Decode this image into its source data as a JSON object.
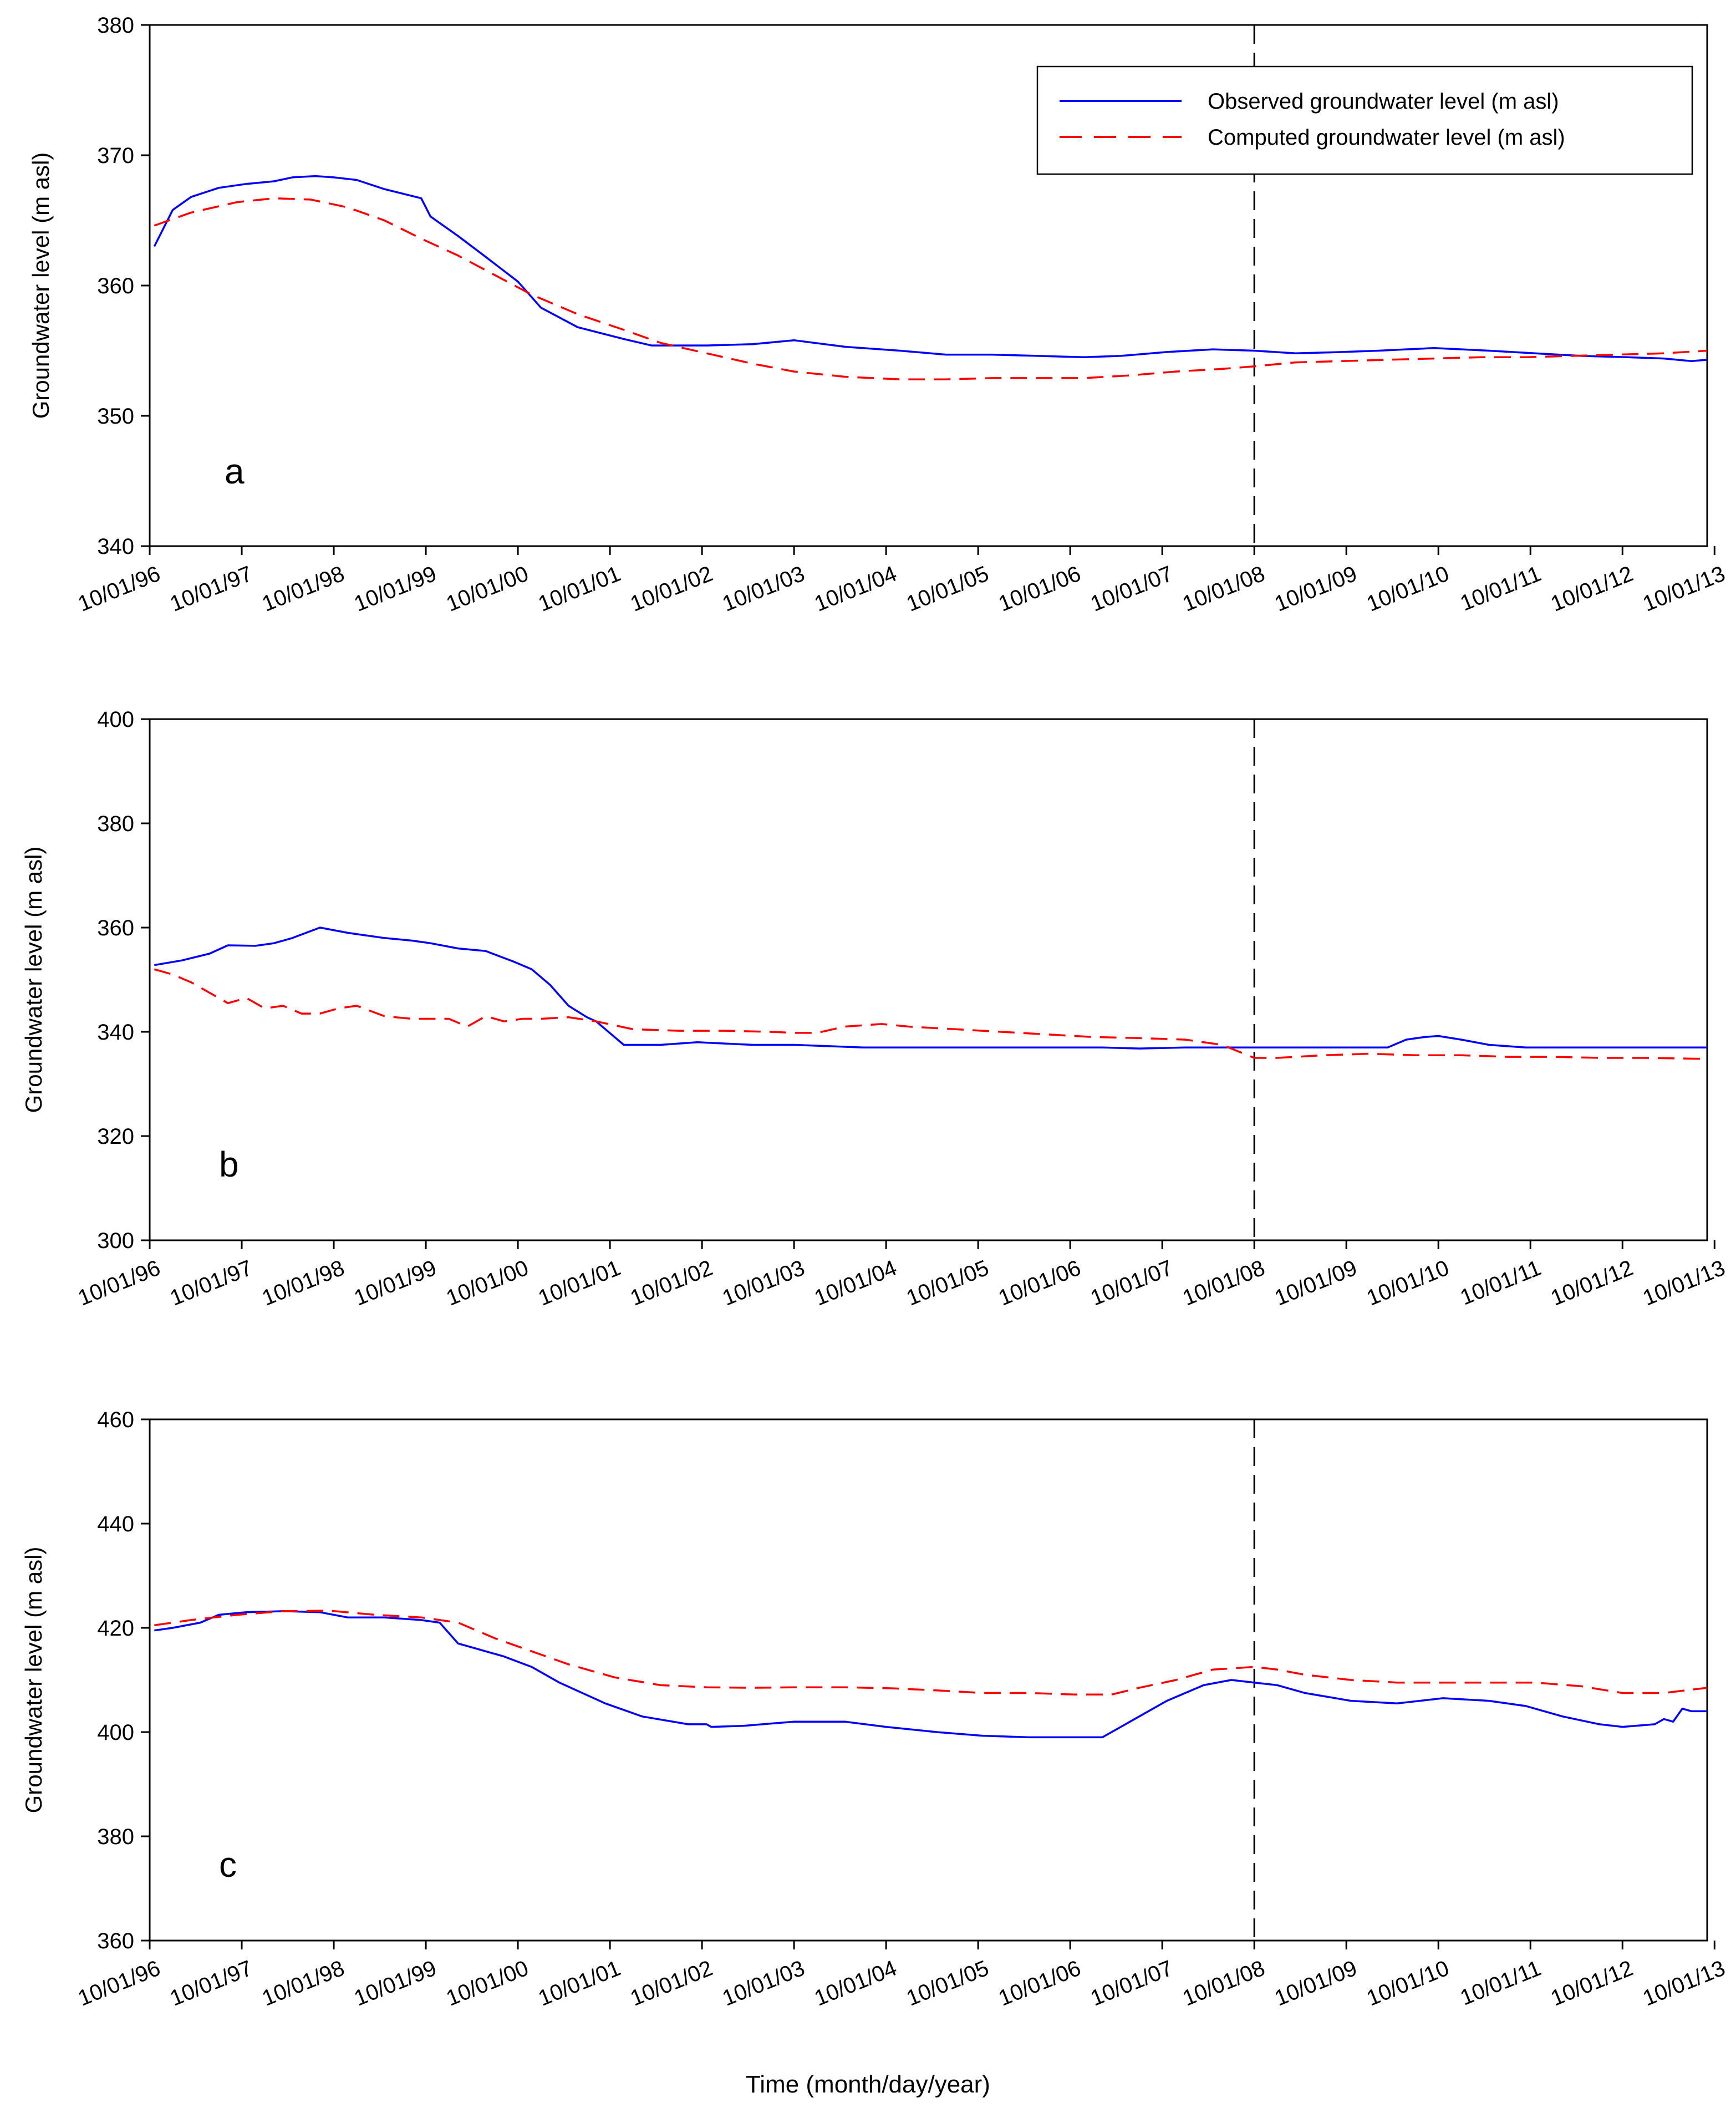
{
  "figure": {
    "xlabel": "Time (month/day/year)",
    "legend": {
      "observed": "Observed groundwater level (m asl)",
      "computed": "Computed groundwater level (m asl)"
    },
    "colors": {
      "observed": "#0000ff",
      "computed": "#ff0000",
      "divider": "#000000"
    }
  },
  "chart_data": [
    {
      "type": "line",
      "panel": "a",
      "ylabel": "Groundwater level (m asl)",
      "xlabel": "Time (month/day/year)",
      "xlim": [
        1996.75,
        2013.67
      ],
      "ylim": [
        340,
        380
      ],
      "yticks": [
        340,
        350,
        360,
        370,
        380
      ],
      "xticks": [
        {
          "x": 1996.75,
          "label": "10/01/96"
        },
        {
          "x": 1997.75,
          "label": "10/01/97"
        },
        {
          "x": 1998.75,
          "label": "10/01/98"
        },
        {
          "x": 1999.75,
          "label": "10/01/99"
        },
        {
          "x": 2000.75,
          "label": "10/01/00"
        },
        {
          "x": 2001.75,
          "label": "10/01/01"
        },
        {
          "x": 2002.75,
          "label": "10/01/02"
        },
        {
          "x": 2003.75,
          "label": "10/01/03"
        },
        {
          "x": 2004.75,
          "label": "10/01/04"
        },
        {
          "x": 2005.75,
          "label": "10/01/05"
        },
        {
          "x": 2006.75,
          "label": "10/01/06"
        },
        {
          "x": 2007.75,
          "label": "10/01/07"
        },
        {
          "x": 2008.75,
          "label": "10/01/08"
        },
        {
          "x": 2009.75,
          "label": "10/01/09"
        },
        {
          "x": 2010.75,
          "label": "10/01/10"
        },
        {
          "x": 2011.75,
          "label": "10/01/11"
        },
        {
          "x": 2012.75,
          "label": "10/01/12"
        },
        {
          "x": 2013.75,
          "label": "10/01/13"
        }
      ],
      "divider_x": 2008.75,
      "legend": "top-right",
      "series": [
        {
          "name": "Observed groundwater level (m asl)",
          "style": "solid",
          "x": [
            1996.8,
            1997.0,
            1997.2,
            1997.5,
            1997.8,
            1998.1,
            1998.3,
            1998.55,
            1998.75,
            1999.0,
            1999.3,
            1999.7,
            1999.8,
            2000.1,
            2000.4,
            2000.75,
            2001.0,
            2001.4,
            2001.9,
            2002.2,
            2002.8,
            2003.3,
            2003.75,
            2004.3,
            2004.9,
            2005.4,
            2005.9,
            2006.4,
            2006.9,
            2007.3,
            2007.8,
            2008.3,
            2008.75,
            2009.2,
            2009.7,
            2010.1,
            2010.7,
            2011.3,
            2011.8,
            2012.3,
            2012.8,
            2013.2,
            2013.5,
            2013.67
          ],
          "y": [
            363.0,
            365.8,
            366.8,
            367.5,
            367.8,
            368.0,
            368.3,
            368.4,
            368.3,
            368.1,
            367.4,
            366.7,
            365.3,
            363.8,
            362.2,
            360.3,
            358.3,
            356.8,
            355.9,
            355.4,
            355.4,
            355.5,
            355.8,
            355.3,
            355.0,
            354.7,
            354.7,
            354.6,
            354.5,
            354.6,
            354.9,
            355.1,
            355.0,
            354.8,
            354.9,
            355.0,
            355.2,
            355.0,
            354.8,
            354.6,
            354.5,
            354.4,
            354.2,
            354.3
          ]
        },
        {
          "name": "Computed groundwater level (m asl)",
          "style": "dashed",
          "x": [
            1996.8,
            1997.2,
            1997.7,
            1998.1,
            1998.5,
            1998.9,
            1999.3,
            1999.7,
            2000.1,
            2000.5,
            2000.9,
            2001.4,
            2001.9,
            2002.3,
            2002.8,
            2003.3,
            2003.75,
            2004.3,
            2004.9,
            2005.4,
            2005.9,
            2006.4,
            2006.9,
            2007.4,
            2007.9,
            2008.4,
            2008.75,
            2009.2,
            2009.7,
            2010.2,
            2010.7,
            2011.2,
            2011.7,
            2012.2,
            2012.7,
            2013.2,
            2013.67
          ],
          "y": [
            364.6,
            365.6,
            366.4,
            366.7,
            366.6,
            366.0,
            365.0,
            363.6,
            362.3,
            360.8,
            359.3,
            357.8,
            356.6,
            355.6,
            354.8,
            354.0,
            353.4,
            353.0,
            352.8,
            352.8,
            352.9,
            352.9,
            352.9,
            353.1,
            353.4,
            353.6,
            353.8,
            354.1,
            354.2,
            354.3,
            354.4,
            354.5,
            354.5,
            354.6,
            354.7,
            354.8,
            355.0
          ]
        }
      ],
      "annotations": [
        "a"
      ]
    },
    {
      "type": "line",
      "panel": "b",
      "ylabel": "Groundwater level (m asl)",
      "xlabel": "Time (month/day/year)",
      "xlim": [
        1996.75,
        2013.67
      ],
      "ylim": [
        300,
        400
      ],
      "yticks": [
        300,
        320,
        340,
        360,
        380,
        400
      ],
      "xticks": [
        {
          "x": 1996.75,
          "label": "10/01/96"
        },
        {
          "x": 1997.75,
          "label": "10/01/97"
        },
        {
          "x": 1998.75,
          "label": "10/01/98"
        },
        {
          "x": 1999.75,
          "label": "10/01/99"
        },
        {
          "x": 2000.75,
          "label": "10/01/00"
        },
        {
          "x": 2001.75,
          "label": "10/01/01"
        },
        {
          "x": 2002.75,
          "label": "10/01/02"
        },
        {
          "x": 2003.75,
          "label": "10/01/03"
        },
        {
          "x": 2004.75,
          "label": "10/01/04"
        },
        {
          "x": 2005.75,
          "label": "10/01/05"
        },
        {
          "x": 2006.75,
          "label": "10/01/06"
        },
        {
          "x": 2007.75,
          "label": "10/01/07"
        },
        {
          "x": 2008.75,
          "label": "10/01/08"
        },
        {
          "x": 2009.75,
          "label": "10/01/09"
        },
        {
          "x": 2010.75,
          "label": "10/01/10"
        },
        {
          "x": 2011.75,
          "label": "10/01/11"
        },
        {
          "x": 2012.75,
          "label": "10/01/12"
        },
        {
          "x": 2013.75,
          "label": "10/01/13"
        }
      ],
      "divider_x": 2008.75,
      "series": [
        {
          "name": "Observed groundwater level (m asl)",
          "style": "solid",
          "x": [
            1996.8,
            1997.1,
            1997.4,
            1997.6,
            1997.9,
            1998.1,
            1998.3,
            1998.6,
            1998.9,
            1999.3,
            1999.6,
            1999.8,
            2000.1,
            2000.4,
            2000.7,
            2000.9,
            2001.1,
            2001.3,
            2001.5,
            2001.6,
            2001.9,
            2002.3,
            2002.7,
            2003.3,
            2003.75,
            2004.5,
            2005.5,
            2006.5,
            2007.1,
            2007.5,
            2008.0,
            2008.75,
            2009.2,
            2009.8,
            2010.2,
            2010.4,
            2010.6,
            2010.75,
            2011.0,
            2011.3,
            2011.7,
            2012.5,
            2013.67
          ],
          "y": [
            352.8,
            353.7,
            355.0,
            356.6,
            356.5,
            357.0,
            358.0,
            360.0,
            359.0,
            358.0,
            357.5,
            357.0,
            356.0,
            355.5,
            353.5,
            352.0,
            349.0,
            345.0,
            342.8,
            342.0,
            337.5,
            337.5,
            338.0,
            337.5,
            337.5,
            337.0,
            337.0,
            337.0,
            337.0,
            336.8,
            337.0,
            337.0,
            337.0,
            337.0,
            337.0,
            338.5,
            339.0,
            339.2,
            338.5,
            337.5,
            337.0,
            337.0,
            337.0
          ]
        },
        {
          "name": "Computed groundwater level (m asl)",
          "style": "dashed",
          "x": [
            1996.8,
            1997.0,
            1997.2,
            1997.4,
            1997.6,
            1997.8,
            1998.0,
            1998.2,
            1998.4,
            1998.6,
            1998.8,
            1999.0,
            1999.3,
            1999.6,
            1999.8,
            2000.0,
            2000.2,
            2000.4,
            2000.6,
            2000.8,
            2001.0,
            2001.3,
            2001.6,
            2002.0,
            2002.5,
            2003.0,
            2003.5,
            2003.75,
            2004.0,
            2004.3,
            2004.7,
            2005.0,
            2005.5,
            2006.0,
            2006.5,
            2007.0,
            2007.5,
            2008.0,
            2008.4,
            2008.75,
            2009.0,
            2009.5,
            2010.0,
            2010.5,
            2011.0,
            2011.5,
            2012.0,
            2012.5,
            2013.0,
            2013.67
          ],
          "y": [
            352.0,
            351.0,
            349.5,
            347.5,
            345.5,
            346.5,
            344.5,
            345.0,
            343.5,
            343.5,
            344.5,
            345.0,
            343.0,
            342.5,
            342.5,
            342.5,
            341.0,
            343.0,
            342.0,
            342.5,
            342.5,
            342.8,
            342.0,
            340.5,
            340.2,
            340.2,
            340.0,
            339.8,
            339.8,
            341.0,
            341.5,
            341.0,
            340.5,
            340.0,
            339.5,
            339.0,
            338.8,
            338.5,
            337.5,
            335.0,
            335.0,
            335.5,
            335.8,
            335.5,
            335.5,
            335.2,
            335.2,
            335.0,
            335.0,
            334.8
          ]
        }
      ],
      "annotations": [
        "b"
      ]
    },
    {
      "type": "line",
      "panel": "c",
      "ylabel": "Groundwater level (m asl)",
      "xlabel": "Time (month/day/year)",
      "xlim": [
        1996.75,
        2013.67
      ],
      "ylim": [
        360,
        460
      ],
      "yticks": [
        360,
        380,
        400,
        420,
        440,
        460
      ],
      "xticks": [
        {
          "x": 1996.75,
          "label": "10/01/96"
        },
        {
          "x": 1997.75,
          "label": "10/01/97"
        },
        {
          "x": 1998.75,
          "label": "10/01/98"
        },
        {
          "x": 1999.75,
          "label": "10/01/99"
        },
        {
          "x": 2000.75,
          "label": "10/01/00"
        },
        {
          "x": 2001.75,
          "label": "10/01/01"
        },
        {
          "x": 2002.75,
          "label": "10/01/02"
        },
        {
          "x": 2003.75,
          "label": "10/01/03"
        },
        {
          "x": 2004.75,
          "label": "10/01/04"
        },
        {
          "x": 2005.75,
          "label": "10/01/05"
        },
        {
          "x": 2006.75,
          "label": "10/01/06"
        },
        {
          "x": 2007.75,
          "label": "10/01/07"
        },
        {
          "x": 2008.75,
          "label": "10/01/08"
        },
        {
          "x": 2009.75,
          "label": "10/01/09"
        },
        {
          "x": 2010.75,
          "label": "10/01/10"
        },
        {
          "x": 2011.75,
          "label": "10/01/11"
        },
        {
          "x": 2012.75,
          "label": "10/01/12"
        },
        {
          "x": 2013.75,
          "label": "10/01/13"
        }
      ],
      "divider_x": 2008.75,
      "series": [
        {
          "name": "Observed groundwater level (m asl)",
          "style": "solid",
          "x": [
            1996.8,
            1997.0,
            1997.3,
            1997.5,
            1997.8,
            1998.2,
            1998.6,
            1998.9,
            1999.3,
            1999.7,
            1999.9,
            2000.1,
            2000.3,
            2000.6,
            2000.9,
            2001.2,
            2001.7,
            2002.1,
            2002.6,
            2002.8,
            2002.85,
            2003.2,
            2003.75,
            2004.3,
            2004.75,
            2005.3,
            2005.8,
            2006.3,
            2006.75,
            2007.1,
            2007.4,
            2007.8,
            2008.2,
            2008.5,
            2008.75,
            2009.0,
            2009.3,
            2009.8,
            2010.3,
            2010.8,
            2011.3,
            2011.7,
            2012.1,
            2012.5,
            2012.75,
            2013.1,
            2013.2,
            2013.3,
            2013.4,
            2013.5,
            2013.67
          ],
          "y": [
            419.5,
            420.0,
            421.0,
            422.5,
            423.0,
            423.2,
            423.0,
            422.0,
            422.0,
            421.5,
            421.0,
            417.0,
            416.0,
            414.5,
            412.5,
            409.5,
            405.5,
            403.0,
            401.5,
            401.5,
            401.0,
            401.2,
            402.0,
            402.0,
            401.0,
            400.0,
            399.3,
            399.0,
            399.0,
            399.0,
            402.0,
            406.0,
            409.0,
            410.0,
            409.5,
            409.0,
            407.5,
            406.0,
            405.5,
            406.5,
            406.0,
            405.0,
            403.0,
            401.5,
            401.0,
            401.5,
            402.5,
            402.0,
            404.5,
            404.0,
            404.0
          ]
        },
        {
          "name": "Computed groundwater level (m asl)",
          "style": "dashed",
          "x": [
            1996.8,
            1997.2,
            1997.7,
            1998.2,
            1998.7,
            1999.2,
            1999.7,
            2000.1,
            2000.5,
            2000.9,
            2001.3,
            2001.8,
            2002.3,
            2002.8,
            2003.3,
            2003.75,
            2004.3,
            2004.8,
            2005.3,
            2005.8,
            2006.3,
            2006.8,
            2007.2,
            2007.5,
            2007.9,
            2008.3,
            2008.75,
            2009.0,
            2009.3,
            2009.8,
            2010.3,
            2010.8,
            2011.3,
            2011.8,
            2012.3,
            2012.75,
            2013.2,
            2013.67
          ],
          "y": [
            420.5,
            421.5,
            422.5,
            423.2,
            423.3,
            422.5,
            422.0,
            421.0,
            418.0,
            415.5,
            413.0,
            410.5,
            409.0,
            408.6,
            408.5,
            408.6,
            408.6,
            408.4,
            408.0,
            407.5,
            407.5,
            407.2,
            407.2,
            408.5,
            410.0,
            412.0,
            412.5,
            412.0,
            411.0,
            410.0,
            409.5,
            409.5,
            409.5,
            409.5,
            408.8,
            407.5,
            407.5,
            408.5
          ]
        }
      ],
      "annotations": [
        "c"
      ]
    }
  ]
}
